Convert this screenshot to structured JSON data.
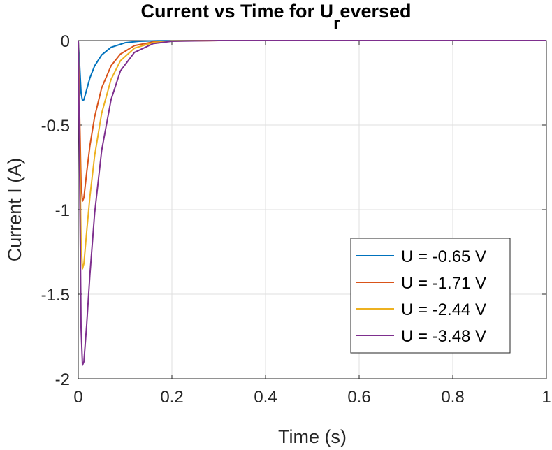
{
  "chart_data": {
    "type": "line",
    "title": {
      "prefix": "Current vs Time for U",
      "subscript": "r",
      "suffix": "eversed"
    },
    "xlabel": "Time (s)",
    "ylabel": "Current I (A)",
    "xlim": [
      0,
      1
    ],
    "ylim": [
      -2,
      0
    ],
    "xticks": [
      0,
      0.2,
      0.4,
      0.6,
      0.8,
      1
    ],
    "xtick_labels": [
      "0",
      "0.2",
      "0.4",
      "0.6",
      "0.8",
      "1"
    ],
    "yticks": [
      -2,
      -1.5,
      -1,
      -0.5,
      0
    ],
    "ytick_labels": [
      "-2",
      "-1.5",
      "-1",
      "-0.5",
      "0"
    ],
    "grid": true,
    "legend_position": "lower-right",
    "series": [
      {
        "name": "U = -0.65 V",
        "color": "#0072BD",
        "points": [
          [
            0,
            0
          ],
          [
            0.003,
            -0.15
          ],
          [
            0.006,
            -0.31
          ],
          [
            0.009,
            -0.355
          ],
          [
            0.012,
            -0.35
          ],
          [
            0.018,
            -0.29
          ],
          [
            0.025,
            -0.22
          ],
          [
            0.035,
            -0.15
          ],
          [
            0.05,
            -0.085
          ],
          [
            0.07,
            -0.04
          ],
          [
            0.1,
            -0.013
          ],
          [
            0.13,
            -0.004
          ],
          [
            0.17,
            -0.001
          ],
          [
            0.25,
            0
          ],
          [
            0.5,
            0
          ],
          [
            0.75,
            0
          ],
          [
            1,
            0
          ]
        ]
      },
      {
        "name": "U = -1.71 V",
        "color": "#D95319",
        "points": [
          [
            0,
            0
          ],
          [
            0.003,
            -0.45
          ],
          [
            0.006,
            -0.85
          ],
          [
            0.009,
            -0.95
          ],
          [
            0.012,
            -0.93
          ],
          [
            0.018,
            -0.78
          ],
          [
            0.025,
            -0.62
          ],
          [
            0.035,
            -0.45
          ],
          [
            0.05,
            -0.28
          ],
          [
            0.07,
            -0.15
          ],
          [
            0.09,
            -0.08
          ],
          [
            0.12,
            -0.03
          ],
          [
            0.16,
            -0.008
          ],
          [
            0.2,
            -0.002
          ],
          [
            0.3,
            0
          ],
          [
            0.6,
            0
          ],
          [
            1,
            0
          ]
        ]
      },
      {
        "name": "U = -2.44 V",
        "color": "#EDB120",
        "points": [
          [
            0,
            0
          ],
          [
            0.003,
            -0.6
          ],
          [
            0.006,
            -1.2
          ],
          [
            0.009,
            -1.35
          ],
          [
            0.012,
            -1.32
          ],
          [
            0.018,
            -1.13
          ],
          [
            0.025,
            -0.92
          ],
          [
            0.035,
            -0.68
          ],
          [
            0.05,
            -0.43
          ],
          [
            0.07,
            -0.23
          ],
          [
            0.09,
            -0.12
          ],
          [
            0.12,
            -0.045
          ],
          [
            0.16,
            -0.012
          ],
          [
            0.2,
            -0.003
          ],
          [
            0.3,
            0
          ],
          [
            0.6,
            0
          ],
          [
            1,
            0
          ]
        ]
      },
      {
        "name": "U = -3.48 V",
        "color": "#7E2F8E",
        "points": [
          [
            0,
            0
          ],
          [
            0.003,
            -0.8
          ],
          [
            0.006,
            -1.7
          ],
          [
            0.009,
            -1.92
          ],
          [
            0.012,
            -1.9
          ],
          [
            0.018,
            -1.68
          ],
          [
            0.025,
            -1.38
          ],
          [
            0.035,
            -1.02
          ],
          [
            0.05,
            -0.65
          ],
          [
            0.07,
            -0.35
          ],
          [
            0.09,
            -0.18
          ],
          [
            0.12,
            -0.07
          ],
          [
            0.16,
            -0.018
          ],
          [
            0.2,
            -0.004
          ],
          [
            0.3,
            0
          ],
          [
            0.6,
            0
          ],
          [
            1,
            0
          ]
        ]
      }
    ]
  }
}
